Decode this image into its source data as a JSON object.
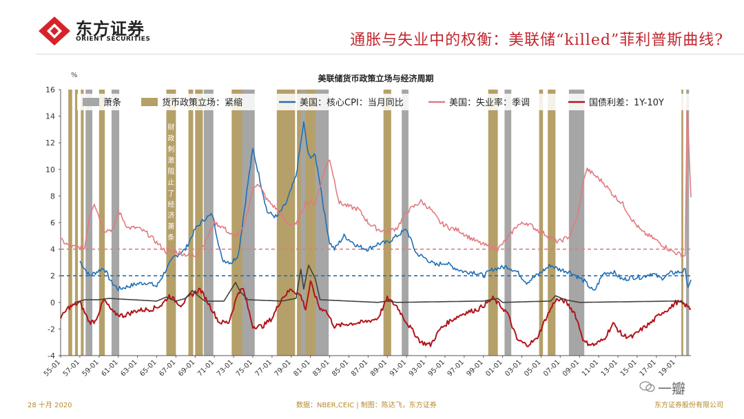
{
  "header": {
    "logo_cn": "东方证券",
    "logo_en": "ORIENT SECURITIES",
    "slide_title": "通胀与失业中的权衡：美联储“killed”菲利普斯曲线?"
  },
  "footer": {
    "date": "28 十月 2020",
    "source": "数据：NBER,CEIC | 制图：陈达飞，东方证券",
    "company": "东方证券股份有限公司"
  },
  "watermark": "一瓣",
  "colors": {
    "recession": "#a6a6a6",
    "tightening": "#b5a069",
    "core_cpi": "#1f6fb5",
    "unemployment": "#e07b80",
    "term_spread": "#b0141b",
    "spread_zero_segments": "#404040",
    "brand_red": "#c0272d"
  },
  "chart_data": {
    "type": "line",
    "title": "美联储货币政策立场与经济周期",
    "y_unit": "%",
    "ylim": [
      -4,
      16
    ],
    "y_ticks": [
      16,
      14,
      12,
      10,
      8,
      6,
      4,
      2,
      0,
      -2,
      -4
    ],
    "xlim": [
      1955,
      2020.6
    ],
    "x_ticks": [
      "55-01",
      "57-01",
      "59-01",
      "61-01",
      "63-01",
      "65-01",
      "67-01",
      "69-01",
      "71-01",
      "73-01",
      "75-01",
      "77-01",
      "79-01",
      "81-01",
      "83-01",
      "85-01",
      "87-01",
      "89-01",
      "91-01",
      "93-01",
      "95-01",
      "97-01",
      "99-01",
      "01-01",
      "03-01",
      "05-01",
      "07-01",
      "09-01",
      "11-01",
      "13-01",
      "15-01",
      "17-01",
      "19-01"
    ],
    "legend": [
      "萧条",
      "货币政策立场：紧缩",
      "美国：核心CPI：当月同比",
      "美国：失业率：季调",
      "国债利差：1Y-10Y"
    ],
    "annotation": "财政刺激阻止了经济萧条",
    "reference_lines": [
      {
        "value": 4,
        "color": "#e07b80",
        "style": "dashed"
      },
      {
        "value": 2,
        "color": "#1f6fb5",
        "style": "dashed"
      }
    ],
    "recessions": [
      [
        1957.6,
        1958.3
      ],
      [
        1960.3,
        1961.1
      ],
      [
        1969.9,
        1970.9
      ],
      [
        1973.9,
        1975.2
      ],
      [
        1980.0,
        1980.5
      ],
      [
        1981.5,
        1982.9
      ],
      [
        1990.5,
        1991.2
      ],
      [
        2001.2,
        2001.9
      ],
      [
        2007.9,
        2009.5
      ],
      [
        2020.1,
        2020.4
      ]
    ],
    "tightening": [
      [
        1955.8,
        1956.2
      ],
      [
        1956.5,
        1956.8
      ],
      [
        1957.1,
        1957.4
      ],
      [
        1959.0,
        1959.6
      ],
      [
        1966.0,
        1967.0
      ],
      [
        1968.3,
        1968.8
      ],
      [
        1969.0,
        1969.8
      ],
      [
        1972.8,
        1974.5
      ],
      [
        1977.5,
        1979.4
      ],
      [
        1979.6,
        1982.0
      ],
      [
        1988.6,
        1989.4
      ],
      [
        1999.5,
        2000.5
      ],
      [
        2004.8,
        2005.2
      ],
      [
        2005.7,
        2006.5
      ],
      [
        2019.6,
        2019.8
      ]
    ],
    "series": [
      {
        "name": "美国：核心CPI：当月同比",
        "color": "#1f6fb5",
        "x": [
          1957.0,
          1958.0,
          1959.5,
          1960.3,
          1961.0,
          1962.0,
          1963.0,
          1964.0,
          1965.0,
          1966.0,
          1966.8,
          1968.0,
          1969.0,
          1970.0,
          1970.8,
          1971.8,
          1972.8,
          1973.5,
          1974.5,
          1975.0,
          1975.5,
          1976.5,
          1977.5,
          1978.5,
          1979.5,
          1980.0,
          1980.3,
          1980.8,
          1981.5,
          1982.0,
          1982.5,
          1983.0,
          1983.5,
          1984.5,
          1986.0,
          1987.0,
          1988.0,
          1989.0,
          1990.0,
          1991.0,
          1992.0,
          1993.0,
          1994.0,
          1995.0,
          1996.0,
          1997.0,
          1998.0,
          1999.0,
          2000.0,
          2001.5,
          2002.5,
          2003.5,
          2004.5,
          2006.0,
          2006.8,
          2008.0,
          2009.5,
          2010.5,
          2011.5,
          2012.5,
          2013.5,
          2014.5,
          2015.5,
          2016.5,
          2017.5,
          2018.5,
          2019.5,
          2020.0,
          2020.3,
          2020.6
        ],
        "y": [
          3.1,
          2.0,
          2.6,
          1.5,
          1.0,
          1.2,
          1.4,
          1.5,
          1.2,
          2.5,
          3.4,
          4.0,
          5.5,
          6.3,
          6.6,
          3.2,
          3.0,
          3.6,
          9.0,
          11.5,
          10.0,
          6.8,
          6.4,
          7.5,
          9.5,
          12.0,
          13.5,
          11.0,
          11.0,
          9.0,
          6.5,
          4.5,
          4.0,
          5.0,
          4.2,
          4.0,
          4.4,
          4.5,
          5.0,
          5.5,
          3.7,
          3.3,
          2.8,
          3.0,
          2.6,
          2.3,
          2.3,
          2.0,
          2.5,
          2.7,
          2.3,
          1.5,
          2.0,
          2.8,
          2.5,
          2.3,
          1.6,
          0.8,
          2.2,
          2.3,
          1.7,
          1.9,
          1.9,
          2.2,
          1.8,
          2.2,
          2.3,
          2.4,
          1.2,
          1.7
        ]
      },
      {
        "name": "美国：失业率：季调",
        "color": "#e07b80",
        "x": [
          1955.0,
          1956.0,
          1957.5,
          1958.0,
          1958.5,
          1959.5,
          1960.5,
          1961.0,
          1962.0,
          1963.0,
          1964.0,
          1965.0,
          1966.0,
          1967.0,
          1968.0,
          1969.0,
          1970.0,
          1971.0,
          1972.0,
          1973.0,
          1974.0,
          1975.0,
          1975.5,
          1976.5,
          1977.5,
          1978.5,
          1979.5,
          1980.5,
          1981.5,
          1982.5,
          1983.0,
          1984.0,
          1985.0,
          1986.0,
          1987.0,
          1988.0,
          1989.0,
          1990.0,
          1991.0,
          1992.5,
          1993.5,
          1994.5,
          1995.5,
          1996.5,
          1997.5,
          1998.5,
          1999.5,
          2000.5,
          2001.5,
          2002.5,
          2003.5,
          2004.5,
          2005.5,
          2006.5,
          2007.0,
          2008.0,
          2008.8,
          2009.5,
          2009.8,
          2010.5,
          2011.5,
          2012.5,
          2013.5,
          2014.5,
          2015.5,
          2016.5,
          2017.5,
          2018.5,
          2019.5,
          2020.0,
          2020.2,
          2020.3,
          2020.6
        ],
        "y": [
          4.7,
          4.2,
          4.1,
          6.5,
          7.5,
          5.4,
          5.5,
          6.9,
          5.6,
          5.6,
          5.2,
          4.5,
          3.8,
          3.8,
          3.6,
          3.5,
          4.5,
          6.0,
          5.6,
          4.9,
          5.5,
          8.5,
          9.0,
          7.7,
          7.0,
          6.0,
          5.8,
          7.5,
          7.5,
          10.0,
          10.8,
          7.5,
          7.2,
          7.0,
          6.0,
          5.5,
          5.3,
          5.6,
          6.8,
          7.6,
          7.0,
          6.0,
          5.6,
          5.4,
          4.9,
          4.5,
          4.2,
          4.0,
          4.8,
          5.8,
          6.0,
          5.5,
          5.1,
          4.6,
          4.6,
          5.0,
          6.5,
          9.5,
          10.0,
          9.6,
          9.0,
          8.1,
          7.4,
          6.2,
          5.3,
          4.9,
          4.4,
          3.9,
          3.6,
          3.5,
          14.7,
          13.3,
          7.9
        ]
      },
      {
        "name": "国债利差：1Y-10Y",
        "color": "#b0141b",
        "x": [
          1955.0,
          1955.8,
          1957.0,
          1958.0,
          1958.6,
          1959.5,
          1960.5,
          1961.5,
          1963.0,
          1964.5,
          1965.5,
          1966.3,
          1967.5,
          1968.5,
          1969.5,
          1970.5,
          1971.5,
          1972.5,
          1973.5,
          1974.0,
          1975.0,
          1976.0,
          1977.0,
          1978.0,
          1979.0,
          1980.0,
          1980.5,
          1981.0,
          1982.0,
          1982.5,
          1983.5,
          1985.0,
          1986.5,
          1988.0,
          1989.0,
          1990.0,
          1991.0,
          1992.5,
          1993.5,
          1994.5,
          1995.5,
          1997.0,
          1998.5,
          2000.0,
          2001.5,
          2002.5,
          2003.5,
          2004.5,
          2005.5,
          2006.5,
          2007.5,
          2008.5,
          2009.5,
          2010.5,
          2011.5,
          2012.5,
          2013.5,
          2014.5,
          2015.5,
          2016.5,
          2017.5,
          2018.5,
          2019.0,
          2019.5,
          2020.0,
          2020.6
        ],
        "y": [
          -1.2,
          -0.4,
          0.0,
          -1.5,
          -1.4,
          0.2,
          -0.8,
          -1.0,
          -0.6,
          -0.5,
          -0.2,
          0.5,
          -0.2,
          0.5,
          1.0,
          -0.2,
          -1.5,
          -1.5,
          0.8,
          1.0,
          -1.8,
          -1.8,
          -1.2,
          0.3,
          1.0,
          0.5,
          -0.5,
          1.5,
          -0.5,
          -0.5,
          -1.8,
          -1.6,
          -1.5,
          -1.2,
          0.3,
          -0.3,
          -1.5,
          -3.0,
          -3.2,
          -2.0,
          -1.4,
          -0.8,
          -0.5,
          0.3,
          -0.8,
          -2.8,
          -3.2,
          -2.8,
          -1.2,
          0.2,
          0.1,
          -0.8,
          -3.0,
          -3.2,
          -2.8,
          -1.6,
          -2.5,
          -2.6,
          -2.0,
          -1.5,
          -0.8,
          -0.4,
          0.0,
          0.0,
          -0.2,
          -0.5
        ]
      },
      {
        "name": "",
        "color": "#404040",
        "x": [
          1956.5,
          1957.5,
          1959.0,
          1960.0,
          1965.0,
          1966.0,
          1967.0,
          1968.0,
          1968.7,
          1969.3,
          1970.0,
          1972.0,
          1973.2,
          1973.7,
          1974.5,
          1978.0,
          1979.5,
          1980.0,
          1980.3,
          1980.8,
          1981.5,
          1982.0,
          1988.0,
          1989.0,
          1990.0,
          1999.0,
          2000.5,
          2001.0,
          2006.0,
          2006.5,
          2007.5,
          2009.0,
          2019.0,
          2019.8
        ],
        "y": [
          0.0,
          0.2,
          0.2,
          0.3,
          0.1,
          0.4,
          0.1,
          0.3,
          0.9,
          0.5,
          0.1,
          0.1,
          1.5,
          0.8,
          0.2,
          0.1,
          0.3,
          2.5,
          1.0,
          2.8,
          1.8,
          0.2,
          0.0,
          0.1,
          0.0,
          0.1,
          0.3,
          0.0,
          0.1,
          0.5,
          0.2,
          0.0,
          0.1,
          0.0
        ]
      }
    ]
  }
}
